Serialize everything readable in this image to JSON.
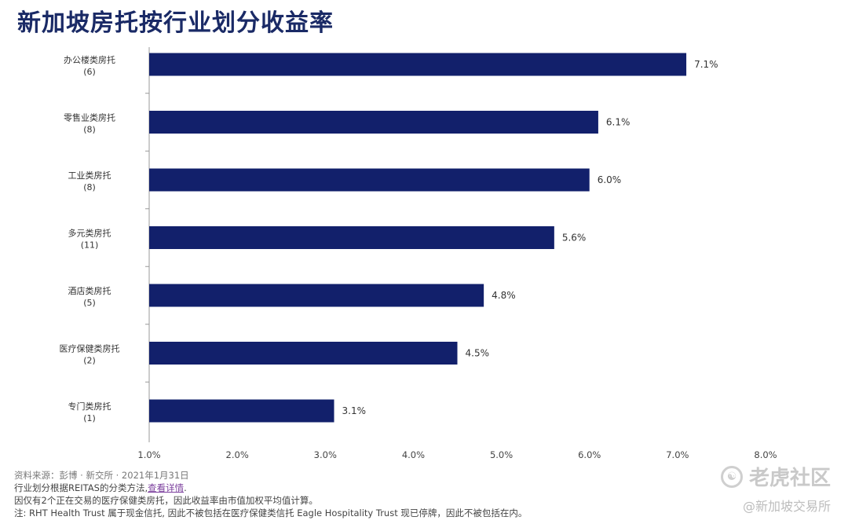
{
  "page": {
    "title": "新加坡房托按行业划分收益率"
  },
  "chart_data": {
    "type": "bar",
    "orientation": "horizontal",
    "title": "新加坡房托按行业划分收益率",
    "categories": [
      {
        "name": "办公楼类房托",
        "count": "(6)"
      },
      {
        "name": "零售业类房托",
        "count": "(8)"
      },
      {
        "name": "工业类房托",
        "count": "(8)"
      },
      {
        "name": "多元类房托",
        "count": "(11)"
      },
      {
        "name": "酒店类房托",
        "count": "(5)"
      },
      {
        "name": "医疗保健类房托",
        "count": "(2)"
      },
      {
        "name": "专门类房托",
        "count": "(1)"
      }
    ],
    "values": [
      7.1,
      6.1,
      6.0,
      5.6,
      4.8,
      4.5,
      3.1
    ],
    "value_labels": [
      "7.1%",
      "6.1%",
      "6.0%",
      "5.6%",
      "4.8%",
      "4.5%",
      "3.1%"
    ],
    "xlim": [
      1.0,
      8.0
    ],
    "x_ticks": [
      "1.0%",
      "2.0%",
      "3.0%",
      "4.0%",
      "5.0%",
      "6.0%",
      "7.0%",
      "8.0%"
    ],
    "bar_color": "#12206b",
    "grid": false,
    "legend": "none"
  },
  "footnotes": {
    "source": "资料来源：彭博 · 新交所 · 2021年1月31日",
    "line2_prefix": "行业划分根据REITAS的分类方法,",
    "line2_link": "查看详情",
    "line2_suffix": ".",
    "line3": "因仅有2个正在交易的医疗保健类房托，因此收益率由市值加权平均值计算。",
    "line4": "注: RHT Health Trust 属于现金信托, 因此不被包括在医疗保健类信托 Eagle Hospitality Trust 现已停牌，因此不被包括在内。"
  },
  "watermark": {
    "icon": "tiger-icon",
    "brand": "老虎社区",
    "handle": "@新加坡交易所"
  }
}
